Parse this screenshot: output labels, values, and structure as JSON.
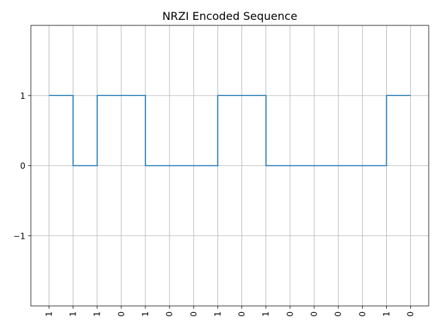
{
  "chart_data": {
    "type": "line",
    "title": "NRZI Encoded Sequence",
    "xlabel": "",
    "ylabel": "",
    "x_tick_labels": [
      "1",
      "1",
      "1",
      "0",
      "1",
      "0",
      "0",
      "1",
      "0",
      "1",
      "0",
      "0",
      "0",
      "0",
      "1",
      "0"
    ],
    "y_ticks": [
      -1,
      0,
      1
    ],
    "y_tick_labels": [
      "−1",
      "0",
      "1"
    ],
    "ylim": [
      -2,
      2
    ],
    "xlim": [
      -0.75,
      15.75
    ],
    "step_style": "post",
    "series": [
      {
        "values": [
          1,
          0,
          1,
          1,
          0,
          0,
          0,
          1,
          1,
          0,
          0,
          0,
          0,
          0,
          1,
          1
        ]
      }
    ],
    "grid": true,
    "legend": "none",
    "colors": {
      "line": "#1f77b4",
      "grid": "#b0b0b0",
      "axes": "#000000"
    }
  }
}
